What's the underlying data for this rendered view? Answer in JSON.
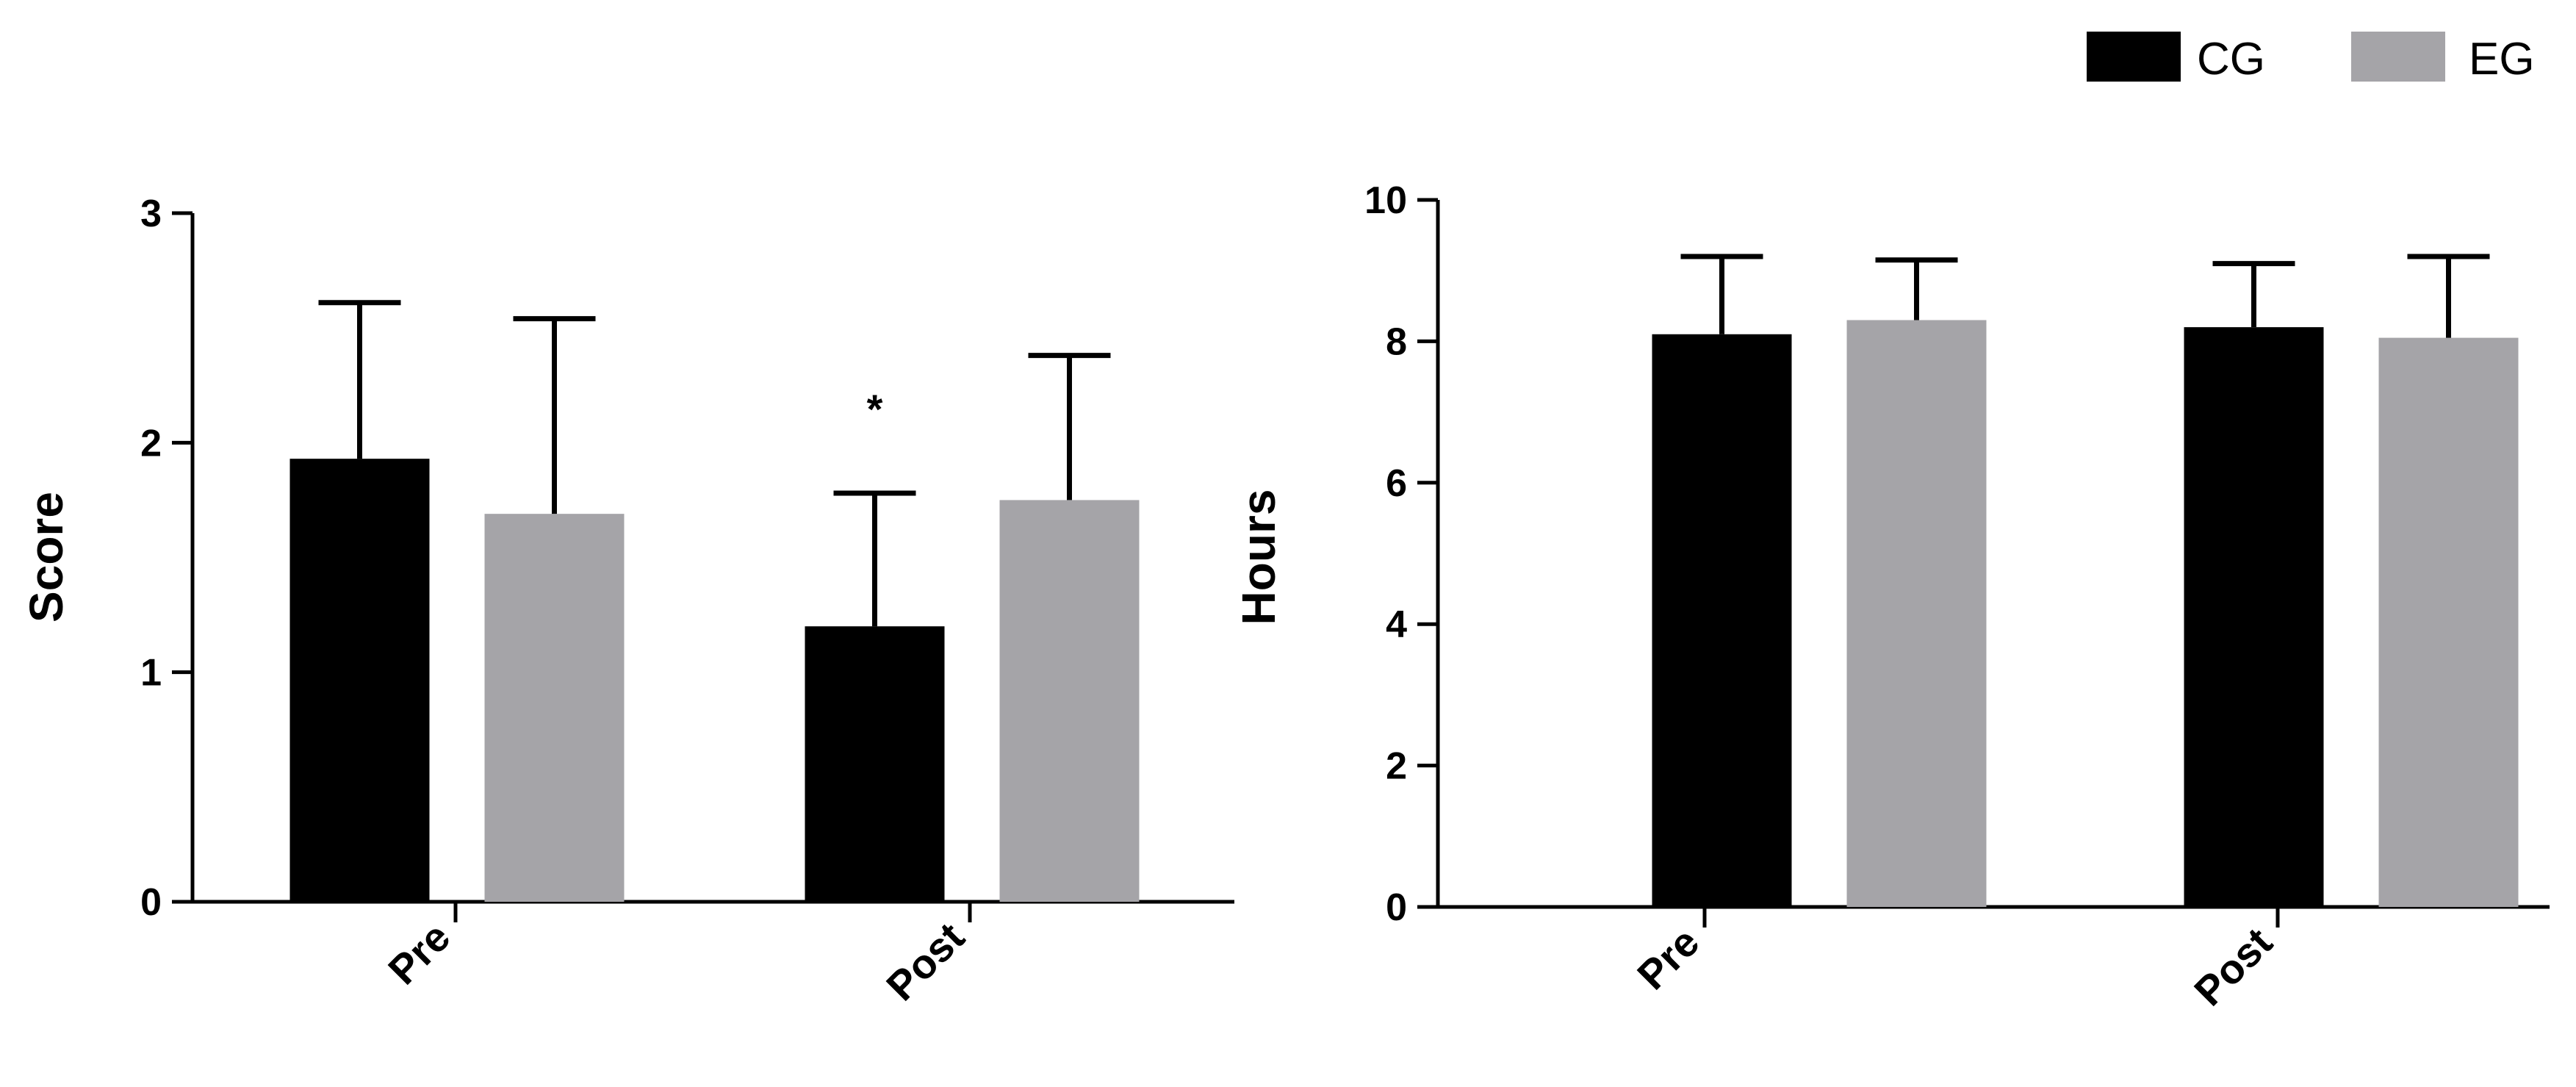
{
  "legend": [
    {
      "label": "CG",
      "color": "#000000"
    },
    {
      "label": "EG",
      "color": "#a5a4a8"
    }
  ],
  "chart_data": [
    {
      "type": "bar",
      "categories": [
        "Pre",
        "Post"
      ],
      "ylabel": "Score",
      "ylim": [
        0,
        3
      ],
      "yticks": [
        0,
        1,
        2,
        3
      ],
      "grid": false,
      "legend_position": "top-right",
      "series": [
        {
          "name": "CG",
          "color": "#000000",
          "values": [
            1.93,
            1.2
          ],
          "errors": [
            0.68,
            0.58
          ]
        },
        {
          "name": "EG",
          "color": "#a5a4a8",
          "values": [
            1.69,
            1.75
          ],
          "errors": [
            0.85,
            0.63
          ]
        }
      ],
      "annotations": [
        {
          "text": "*",
          "category": "Post",
          "series": "CG"
        }
      ]
    },
    {
      "type": "bar",
      "categories": [
        "Pre",
        "Post"
      ],
      "ylabel": "Hours",
      "ylim": [
        0,
        10
      ],
      "yticks": [
        0,
        2,
        4,
        6,
        8,
        10
      ],
      "grid": false,
      "series": [
        {
          "name": "CG",
          "color": "#000000",
          "values": [
            8.1,
            8.2
          ],
          "errors": [
            1.1,
            0.9
          ]
        },
        {
          "name": "EG",
          "color": "#a5a4a8",
          "values": [
            8.3,
            8.05
          ],
          "errors": [
            0.85,
            1.15
          ]
        }
      ]
    }
  ]
}
